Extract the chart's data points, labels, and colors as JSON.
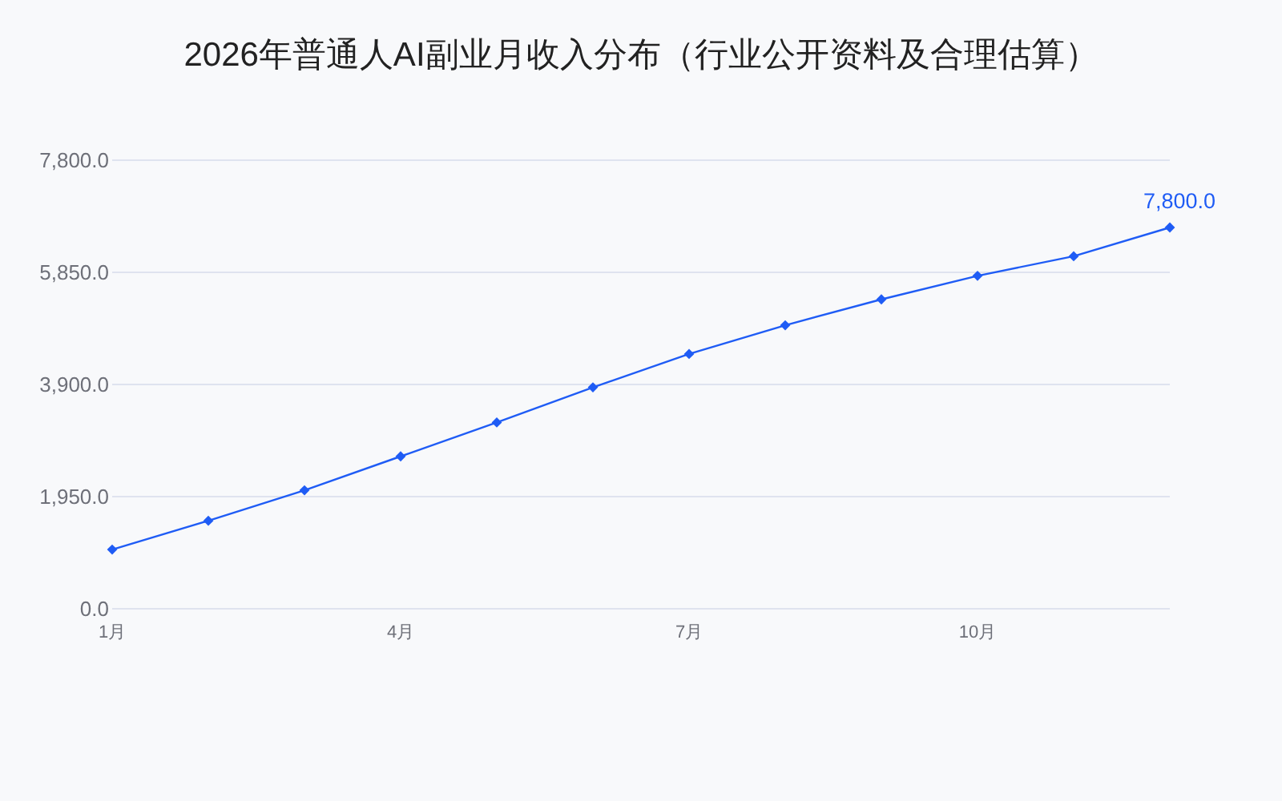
{
  "chart_data": {
    "type": "line",
    "title": "2026年普通人AI副业月收入分布（行业公开资料及合理估算）",
    "categories": [
      "1月",
      null,
      null,
      "4月",
      null,
      null,
      "7月",
      null,
      null,
      "10月",
      null,
      null
    ],
    "series": [
      {
        "color": "#1f5cf5",
        "values": [
          1030,
          1530,
          2060,
          2650,
          3240,
          3850,
          4430,
          4930,
          5380,
          5790,
          6130,
          6630
        ]
      }
    ],
    "annotations": [
      {
        "text": "7,800.0",
        "y": 6630
      }
    ],
    "ylim": [
      0,
      7800
    ],
    "yticks": [
      {
        "value": 0,
        "label": "0.0"
      },
      {
        "value": 1950,
        "label": "1,950.0"
      },
      {
        "value": 3900,
        "label": "3,900.0"
      },
      {
        "value": 5850,
        "label": "5,850.0"
      },
      {
        "value": 7800,
        "label": "7,800.0"
      }
    ],
    "grid": "y",
    "marker": "diamond",
    "line_style": "solid"
  }
}
